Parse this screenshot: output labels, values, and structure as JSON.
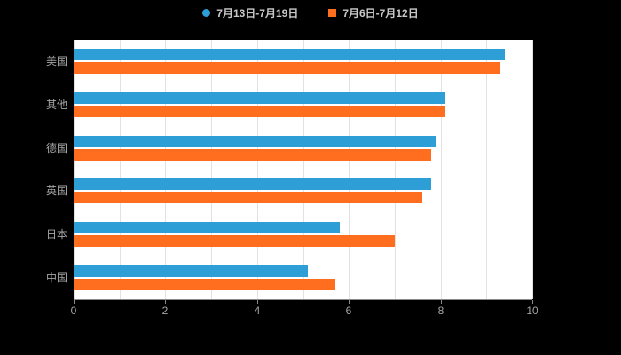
{
  "legend": {
    "items": [
      {
        "label": "7月13日-7月19日",
        "color": "#2E9FD6",
        "shape": "circle"
      },
      {
        "label": "7月6日-7月12日",
        "color": "#FF6E1E",
        "shape": "square"
      }
    ]
  },
  "colors": {
    "background": "#000000",
    "plot_background": "#ffffff",
    "grid": "#e2e2e2",
    "axis": "#8a8a8a",
    "tick_text": "#a6a6a6",
    "legend_text": "#c8c8c8",
    "series_blue": "#2E9FD6",
    "series_orange": "#FF6E1E"
  },
  "chart_data": {
    "type": "bar",
    "orientation": "horizontal",
    "title": "",
    "xlabel": "",
    "ylabel": "",
    "categories": [
      "美国",
      "其他",
      "德国",
      "英国",
      "日本",
      "中国"
    ],
    "series": [
      {
        "name": "7月13日-7月19日",
        "color": "#2E9FD6",
        "values": [
          9.4,
          8.1,
          7.9,
          7.8,
          5.8,
          5.1
        ]
      },
      {
        "name": "7月6日-7月12日",
        "color": "#FF6E1E",
        "values": [
          9.3,
          8.1,
          7.8,
          7.6,
          7.0,
          5.7
        ]
      }
    ],
    "xlim": [
      0,
      10
    ],
    "x_ticks": [
      0,
      2,
      4,
      6,
      8,
      10
    ],
    "gridlines_every": 1,
    "grid": true,
    "legend_position": "top"
  }
}
